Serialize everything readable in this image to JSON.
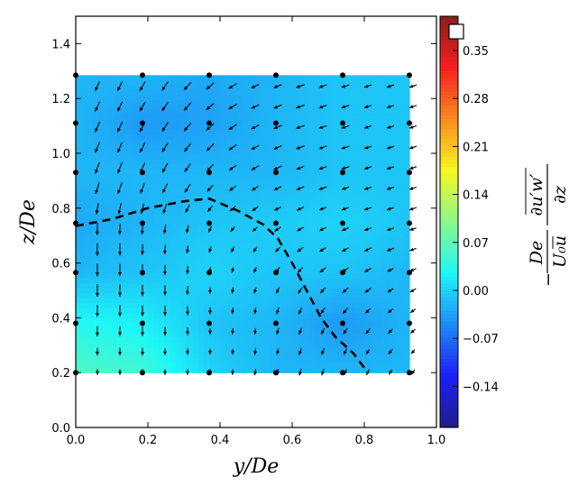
{
  "chart_data": {
    "type": "contour+quiver",
    "xlabel": "y/De",
    "ylabel": "z/De",
    "xlim": [
      0.0,
      1.0
    ],
    "ylim": [
      0.0,
      1.5
    ],
    "xticks": [
      "0.0",
      "0.2",
      "0.4",
      "0.6",
      "0.8",
      "1.0"
    ],
    "yticks": [
      "0.0",
      "0.2",
      "0.4",
      "0.6",
      "0.8",
      "1.0",
      "1.2",
      "1.4"
    ],
    "grid": false,
    "colormap": "jet",
    "colorbar": {
      "range": [
        -0.2,
        0.4
      ],
      "ticks": [
        "−0.14",
        "−0.07",
        "0.00",
        "0.07",
        "0.14",
        "0.21",
        "0.28",
        "0.35"
      ],
      "tick_values": [
        -0.14,
        -0.07,
        0.0,
        0.07,
        0.14,
        0.21,
        0.28,
        0.35
      ],
      "label": {
        "sign": "−",
        "frac1_num": "De",
        "frac1_den": "U₀u",
        "frac2_num": "∂u′w′",
        "frac2_den": "∂z"
      }
    },
    "contour": {
      "x": [
        0.0,
        0.185,
        0.37,
        0.555,
        0.74,
        0.925
      ],
      "y": [
        1.285,
        1.11,
        0.93,
        0.745,
        0.565,
        0.38,
        0.2
      ],
      "values": [
        [
          -0.02,
          -0.02,
          -0.03,
          -0.02,
          -0.01,
          -0.01
        ],
        [
          -0.02,
          -0.04,
          -0.035,
          -0.02,
          -0.01,
          -0.01
        ],
        [
          -0.02,
          -0.02,
          -0.02,
          -0.02,
          -0.01,
          -0.01
        ],
        [
          -0.03,
          -0.02,
          -0.01,
          -0.005,
          0.0,
          -0.01
        ],
        [
          -0.02,
          -0.01,
          0.0,
          -0.01,
          -0.01,
          -0.02
        ],
        [
          0.03,
          0.02,
          -0.01,
          -0.02,
          -0.04,
          -0.02
        ],
        [
          0.06,
          0.05,
          0.0,
          -0.02,
          -0.02,
          -0.02
        ]
      ]
    },
    "measurement_points": {
      "x": [
        0.0,
        0.185,
        0.37,
        0.555,
        0.74,
        0.925
      ],
      "y": [
        1.285,
        1.11,
        0.93,
        0.745,
        0.565,
        0.38,
        0.2
      ]
    },
    "quiver": {
      "x": [
        0.06,
        0.1225,
        0.185,
        0.2475,
        0.31,
        0.3725,
        0.435,
        0.4975,
        0.56,
        0.6225,
        0.685,
        0.7475,
        0.81,
        0.8725,
        0.935
      ],
      "y": [
        1.245,
        1.1705,
        1.096,
        1.0215,
        0.947,
        0.8725,
        0.798,
        0.7235,
        0.649,
        0.5745,
        0.5,
        0.4255,
        0.351,
        0.2765,
        0.202
      ],
      "direction_deg": [
        [
          245,
          243,
          240,
          235,
          228,
          220,
          212,
          205,
          202,
          200,
          200,
          198,
          198,
          198,
          198
        ],
        [
          245,
          244,
          240,
          235,
          228,
          220,
          212,
          206,
          202,
          200,
          200,
          198,
          198,
          198,
          198
        ],
        [
          247,
          245,
          242,
          237,
          230,
          222,
          214,
          207,
          203,
          200,
          200,
          198,
          198,
          198,
          198
        ],
        [
          248,
          247,
          243,
          238,
          232,
          224,
          215,
          208,
          203,
          200,
          200,
          198,
          198,
          198,
          198
        ],
        [
          250,
          249,
          245,
          240,
          234,
          226,
          216,
          210,
          204,
          202,
          200,
          198,
          198,
          198,
          198
        ],
        [
          252,
          250,
          248,
          243,
          236,
          228,
          218,
          212,
          206,
          203,
          200,
          199,
          198,
          198,
          198
        ],
        [
          260,
          258,
          255,
          250,
          242,
          232,
          222,
          215,
          208,
          205,
          202,
          200,
          198,
          198,
          198
        ],
        [
          268,
          267,
          265,
          262,
          255,
          245,
          232,
          222,
          215,
          210,
          206,
          203,
          200,
          200,
          198
        ],
        [
          270,
          270,
          268,
          266,
          262,
          255,
          245,
          235,
          225,
          218,
          212,
          208,
          205,
          202,
          200
        ],
        [
          270,
          270,
          270,
          268,
          266,
          262,
          255,
          245,
          235,
          228,
          220,
          215,
          210,
          207,
          205
        ],
        [
          270,
          270,
          270,
          270,
          268,
          265,
          260,
          252,
          243,
          235,
          228,
          222,
          217,
          213,
          210
        ],
        [
          270,
          270,
          270,
          270,
          270,
          268,
          263,
          257,
          250,
          243,
          236,
          230,
          225,
          220,
          215
        ],
        [
          270,
          270,
          270,
          270,
          270,
          269,
          265,
          260,
          254,
          248,
          242,
          236,
          230,
          225,
          220
        ],
        [
          270,
          270,
          270,
          270,
          270,
          269,
          266,
          262,
          257,
          252,
          247,
          242,
          237,
          232,
          228
        ],
        [
          270,
          270,
          270,
          270,
          270,
          268,
          265,
          262,
          258,
          254,
          250,
          246,
          242,
          238,
          235
        ]
      ],
      "magnitude": [
        [
          0.85,
          0.85,
          0.85,
          0.85,
          0.85,
          0.8,
          0.75,
          0.7,
          0.7,
          0.7,
          0.65,
          0.65,
          0.6,
          0.6,
          0.6
        ],
        [
          0.85,
          0.85,
          0.85,
          0.85,
          0.85,
          0.8,
          0.75,
          0.7,
          0.7,
          0.7,
          0.65,
          0.65,
          0.6,
          0.6,
          0.6
        ],
        [
          0.9,
          0.9,
          0.9,
          0.85,
          0.85,
          0.8,
          0.75,
          0.7,
          0.7,
          0.7,
          0.65,
          0.65,
          0.6,
          0.6,
          0.6
        ],
        [
          0.9,
          0.9,
          0.9,
          0.85,
          0.85,
          0.8,
          0.75,
          0.7,
          0.7,
          0.7,
          0.65,
          0.65,
          0.6,
          0.6,
          0.6
        ],
        [
          0.95,
          0.95,
          0.9,
          0.85,
          0.8,
          0.75,
          0.7,
          0.7,
          0.7,
          0.65,
          0.65,
          0.65,
          0.6,
          0.6,
          0.6
        ],
        [
          0.95,
          0.95,
          0.9,
          0.85,
          0.8,
          0.7,
          0.65,
          0.65,
          0.65,
          0.65,
          0.65,
          0.6,
          0.6,
          0.6,
          0.6
        ],
        [
          0.9,
          0.9,
          0.85,
          0.8,
          0.7,
          0.6,
          0.6,
          0.6,
          0.6,
          0.6,
          0.6,
          0.6,
          0.6,
          0.6,
          0.6
        ],
        [
          0.95,
          0.9,
          0.85,
          0.75,
          0.65,
          0.55,
          0.5,
          0.55,
          0.6,
          0.6,
          0.6,
          0.6,
          0.6,
          0.6,
          0.55
        ],
        [
          1.0,
          0.95,
          0.85,
          0.75,
          0.6,
          0.5,
          0.5,
          0.5,
          0.55,
          0.6,
          0.6,
          0.6,
          0.6,
          0.6,
          0.55
        ],
        [
          1.0,
          0.95,
          0.9,
          0.8,
          0.65,
          0.5,
          0.45,
          0.5,
          0.55,
          0.6,
          0.6,
          0.6,
          0.6,
          0.55,
          0.55
        ],
        [
          1.0,
          0.95,
          0.9,
          0.8,
          0.7,
          0.55,
          0.5,
          0.5,
          0.55,
          0.6,
          0.6,
          0.6,
          0.6,
          0.55,
          0.55
        ],
        [
          0.95,
          0.9,
          0.85,
          0.8,
          0.7,
          0.55,
          0.5,
          0.5,
          0.55,
          0.6,
          0.6,
          0.6,
          0.55,
          0.55,
          0.5
        ],
        [
          0.8,
          0.75,
          0.75,
          0.7,
          0.6,
          0.5,
          0.5,
          0.5,
          0.55,
          0.55,
          0.55,
          0.55,
          0.55,
          0.5,
          0.5
        ],
        [
          0.6,
          0.6,
          0.6,
          0.55,
          0.5,
          0.45,
          0.45,
          0.5,
          0.5,
          0.55,
          0.55,
          0.55,
          0.5,
          0.5,
          0.45
        ],
        [
          0.45,
          0.45,
          0.45,
          0.45,
          0.45,
          0.45,
          0.45,
          0.5,
          0.5,
          0.55,
          0.55,
          0.5,
          0.5,
          0.45,
          0.45
        ]
      ]
    },
    "dashed_line": {
      "x": [
        0.0,
        0.1,
        0.2,
        0.3,
        0.37,
        0.45,
        0.52,
        0.56,
        0.6,
        0.64,
        0.68,
        0.72,
        0.77,
        0.81
      ],
      "y": [
        0.735,
        0.76,
        0.8,
        0.825,
        0.835,
        0.79,
        0.74,
        0.69,
        0.6,
        0.5,
        0.4,
        0.33,
        0.27,
        0.2
      ]
    }
  }
}
